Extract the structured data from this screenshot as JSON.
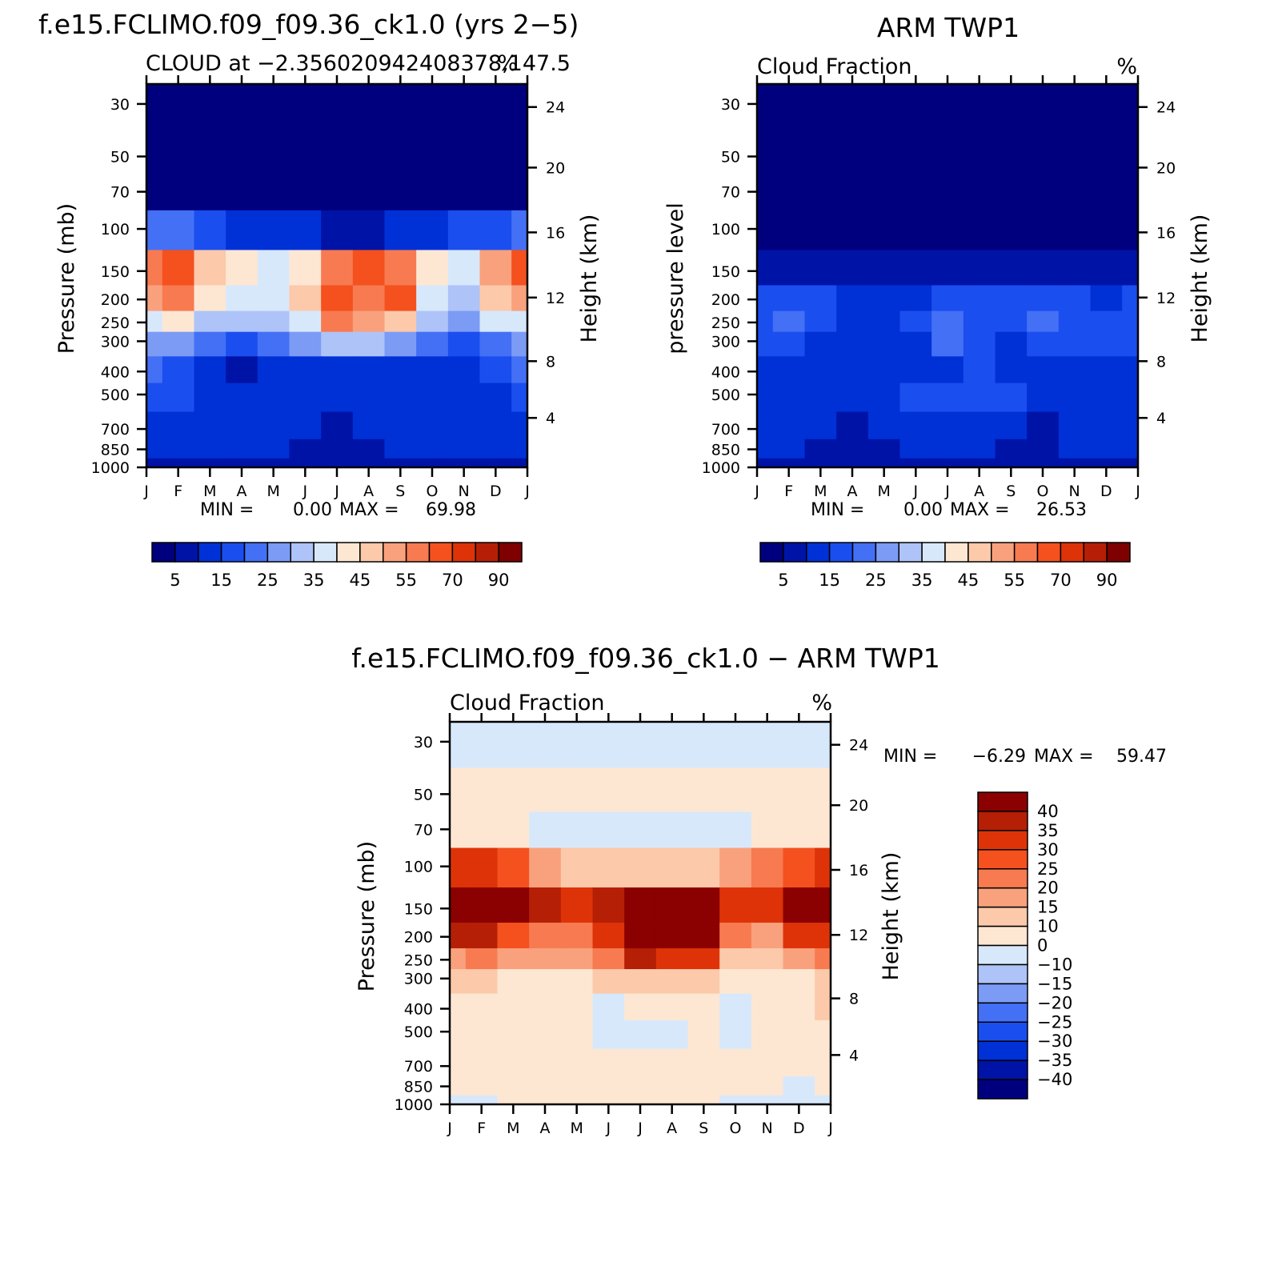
{
  "colors": {
    "abs_scale": [
      "#00007f",
      "#0013a7",
      "#0031d6",
      "#1b4eef",
      "#4370f5",
      "#7b9bf5",
      "#aec3f8",
      "#d8e8fb",
      "#fde7d3",
      "#fcc9aa",
      "#f9a17d",
      "#f87a50",
      "#f4511f",
      "#de3308",
      "#b51f06",
      "#7f0000"
    ],
    "diff_scale": [
      "#00007f",
      "#0013a7",
      "#0031d6",
      "#1b4eef",
      "#4370f5",
      "#7b9bf5",
      "#aec3f8",
      "#d8e8fb",
      "#fde7d3",
      "#fcc9aa",
      "#f9a17d",
      "#f87a50",
      "#f4511f",
      "#de3308",
      "#b51f06",
      "#8b0000"
    ]
  },
  "months": [
    "J",
    "F",
    "M",
    "A",
    "M",
    "J",
    "J",
    "A",
    "S",
    "O",
    "N",
    "D",
    "J"
  ],
  "pressure_ticks": [
    "30",
    "50",
    "70",
    "100",
    "150",
    "200",
    "250",
    "300",
    "400",
    "500",
    "700",
    "850",
    "1000"
  ],
  "height_ticks": [
    "24",
    "20",
    "16",
    "12",
    "8",
    "4"
  ],
  "abs_colorbar_labels": [
    "5",
    "15",
    "25",
    "35",
    "45",
    "55",
    "70",
    "90"
  ],
  "diff_colorbar_labels": [
    "40",
    "35",
    "30",
    "25",
    "20",
    "15",
    "10",
    "0",
    "−10",
    "−15",
    "−20",
    "−25",
    "−30",
    "−35",
    "−40"
  ],
  "panels": {
    "model": {
      "case_title": "f.e15.FCLIMO.f09_f09.36_ck1.0 (yrs 2−5)",
      "subtitle_left": "CLOUD at −2.356020942408378,147.5",
      "units": "%",
      "ylabel_left": "Pressure (mb)",
      "ylabel_right": "Height (km)",
      "min_label": "MIN =",
      "min_value": "0.00",
      "max_label": "MAX =",
      "max_value": "69.98"
    },
    "obs": {
      "case_title": "ARM TWP1",
      "subtitle_left": "Cloud Fraction",
      "units": "%",
      "ylabel_left": "pressure level",
      "ylabel_right": "Height (km)",
      "min_label": "MIN =",
      "min_value": "0.00",
      "max_label": "MAX =",
      "max_value": "26.53"
    },
    "diff": {
      "case_title": "f.e15.FCLIMO.f09_f09.36_ck1.0 − ARM TWP1",
      "subtitle_left": "Cloud Fraction",
      "units": "%",
      "ylabel_left": "Pressure (mb)",
      "ylabel_right": "Height (km)",
      "min_label": "MIN =",
      "min_value": "−6.29",
      "max_label": "MAX =",
      "max_value": "59.47"
    }
  },
  "chart_data": [
    {
      "type": "heatmap",
      "title": "f.e15.FCLIMO.f09_f09.36_ck1.0 (yrs 2−5)",
      "subtitle": "CLOUD at −2.356020942408378,147.5",
      "units": "%",
      "xlabel": "",
      "ylabel": "Pressure (mb)",
      "ylabel_right": "Height (km)",
      "x": [
        "J",
        "F",
        "M",
        "A",
        "M",
        "J",
        "J",
        "A",
        "S",
        "O",
        "N",
        "D",
        "J"
      ],
      "y_pressure": [
        30,
        50,
        70,
        100,
        150,
        200,
        250,
        300,
        400,
        500,
        700,
        850,
        1000
      ],
      "contour_levels": [
        5,
        10,
        15,
        20,
        25,
        30,
        35,
        40,
        45,
        50,
        55,
        60,
        70,
        80,
        90
      ],
      "min": 0.0,
      "max": 69.98,
      "values": [
        [
          0,
          0,
          0,
          0,
          0,
          0,
          0,
          0,
          0,
          0,
          0,
          0,
          0
        ],
        [
          0,
          0,
          0,
          0,
          0,
          0,
          0,
          0,
          0,
          0,
          0,
          0,
          0
        ],
        [
          4,
          3,
          2,
          1,
          1,
          0,
          0,
          0,
          0,
          1,
          1,
          2,
          4
        ],
        [
          20,
          24,
          18,
          14,
          12,
          10,
          9,
          8,
          11,
          13,
          15,
          19,
          22
        ],
        [
          58,
          62,
          48,
          40,
          38,
          44,
          56,
          60,
          57,
          40,
          36,
          50,
          60
        ],
        [
          52,
          55,
          42,
          36,
          38,
          48,
          64,
          58,
          62,
          38,
          32,
          46,
          50
        ],
        [
          36,
          42,
          34,
          30,
          30,
          38,
          58,
          50,
          48,
          32,
          28,
          36,
          38
        ],
        [
          26,
          28,
          20,
          18,
          20,
          26,
          34,
          30,
          26,
          20,
          18,
          24,
          26
        ],
        [
          22,
          18,
          12,
          8,
          12,
          14,
          14,
          14,
          12,
          10,
          12,
          16,
          24
        ],
        [
          18,
          16,
          12,
          10,
          12,
          12,
          10,
          10,
          10,
          10,
          12,
          14,
          18
        ],
        [
          12,
          12,
          11,
          11,
          11,
          10,
          9,
          10,
          10,
          10,
          11,
          12,
          12
        ],
        [
          10,
          10,
          10,
          10,
          10,
          9,
          9,
          9,
          10,
          10,
          10,
          10,
          10
        ],
        [
          8,
          8,
          8,
          8,
          8,
          8,
          8,
          8,
          8,
          8,
          8,
          8,
          8
        ]
      ]
    },
    {
      "type": "heatmap",
      "title": "ARM TWP1",
      "subtitle": "Cloud Fraction",
      "units": "%",
      "xlabel": "",
      "ylabel": "pressure level",
      "ylabel_right": "Height (km)",
      "x": [
        "J",
        "F",
        "M",
        "A",
        "M",
        "J",
        "J",
        "A",
        "S",
        "O",
        "N",
        "D",
        "J"
      ],
      "y_pressure": [
        30,
        50,
        70,
        100,
        150,
        200,
        250,
        300,
        400,
        500,
        700,
        850,
        1000
      ],
      "contour_levels": [
        5,
        10,
        15,
        20,
        25,
        30,
        35,
        40,
        45,
        50,
        55,
        60,
        70,
        80,
        90
      ],
      "min": 0.0,
      "max": 26.53,
      "values": [
        [
          0,
          0,
          0,
          0,
          0,
          0,
          0,
          0,
          0,
          0,
          0,
          0,
          0
        ],
        [
          0,
          0,
          0,
          0,
          0,
          0,
          0,
          0,
          0,
          0,
          0,
          0,
          0
        ],
        [
          0,
          0,
          0,
          0,
          0,
          0,
          0,
          0,
          0,
          0,
          0,
          0,
          0
        ],
        [
          2,
          2,
          1,
          1,
          1,
          1,
          1,
          1,
          1,
          1,
          1,
          1,
          2
        ],
        [
          7,
          8,
          6,
          5,
          5,
          5,
          5,
          5,
          5,
          6,
          6,
          7,
          7
        ],
        [
          15,
          17,
          16,
          14,
          13,
          14,
          18,
          17,
          16,
          18,
          16,
          14,
          15
        ],
        [
          16,
          20,
          18,
          14,
          14,
          16,
          22,
          18,
          18,
          20,
          18,
          16,
          16
        ],
        [
          15,
          16,
          14,
          12,
          12,
          14,
          20,
          16,
          14,
          16,
          16,
          15,
          15
        ],
        [
          13,
          13,
          12,
          10,
          12,
          14,
          14,
          16,
          14,
          12,
          14,
          14,
          13
        ],
        [
          13,
          12,
          11,
          10,
          12,
          16,
          16,
          18,
          16,
          12,
          13,
          13,
          13
        ],
        [
          12,
          11,
          10,
          8,
          10,
          14,
          14,
          14,
          10,
          8,
          11,
          12,
          12
        ],
        [
          11,
          10,
          8,
          8,
          9,
          12,
          12,
          12,
          9,
          9,
          10,
          11,
          11
        ],
        [
          5,
          5,
          5,
          5,
          5,
          5,
          5,
          5,
          5,
          5,
          5,
          5,
          5
        ]
      ]
    },
    {
      "type": "heatmap",
      "title": "f.e15.FCLIMO.f09_f09.36_ck1.0 − ARM TWP1",
      "subtitle": "Cloud Fraction",
      "units": "%",
      "xlabel": "",
      "ylabel": "Pressure (mb)",
      "ylabel_right": "Height (km)",
      "x": [
        "J",
        "F",
        "M",
        "A",
        "M",
        "J",
        "J",
        "A",
        "S",
        "O",
        "N",
        "D",
        "J"
      ],
      "y_pressure": [
        30,
        50,
        70,
        100,
        150,
        200,
        250,
        300,
        400,
        500,
        700,
        850,
        1000
      ],
      "contour_levels": [
        -40,
        -35,
        -30,
        -25,
        -20,
        -15,
        -10,
        0,
        10,
        15,
        20,
        25,
        30,
        35,
        40
      ],
      "min": -6.29,
      "max": 59.47,
      "values": [
        [
          -1,
          -1,
          -1,
          -1,
          -1,
          -1,
          -1,
          -1,
          -1,
          -1,
          -1,
          -1,
          -1
        ],
        [
          3,
          3,
          3,
          2,
          3,
          3,
          3,
          3,
          3,
          3,
          3,
          3,
          3
        ],
        [
          4,
          4,
          4,
          -2,
          -1,
          -2,
          -2,
          -2,
          -2,
          -2,
          4,
          4,
          4
        ],
        [
          30,
          34,
          26,
          16,
          14,
          12,
          10,
          10,
          14,
          16,
          20,
          28,
          32
        ],
        [
          48,
          52,
          42,
          36,
          34,
          38,
          48,
          52,
          48,
          34,
          30,
          42,
          50
        ],
        [
          36,
          38,
          26,
          22,
          24,
          32,
          44,
          40,
          44,
          22,
          16,
          30,
          34
        ],
        [
          18,
          22,
          16,
          16,
          16,
          22,
          36,
          30,
          30,
          14,
          10,
          18,
          20
        ],
        [
          10,
          12,
          6,
          6,
          8,
          10,
          14,
          12,
          12,
          4,
          2,
          8,
          10
        ],
        [
          8,
          6,
          2,
          2,
          2,
          -1,
          2,
          1,
          2,
          -2,
          2,
          4,
          10
        ],
        [
          6,
          4,
          2,
          2,
          2,
          -3,
          -2,
          -2,
          2,
          -1,
          2,
          2,
          6
        ],
        [
          2,
          2,
          2,
          2,
          2,
          2,
          2,
          2,
          2,
          2,
          2,
          2,
          2
        ],
        [
          2,
          2,
          2,
          2,
          2,
          2,
          2,
          2,
          2,
          2,
          2,
          -1,
          2
        ],
        [
          -1,
          -1,
          2,
          2,
          2,
          2,
          2,
          2,
          2,
          -1,
          -1,
          -1,
          -1
        ]
      ]
    }
  ]
}
